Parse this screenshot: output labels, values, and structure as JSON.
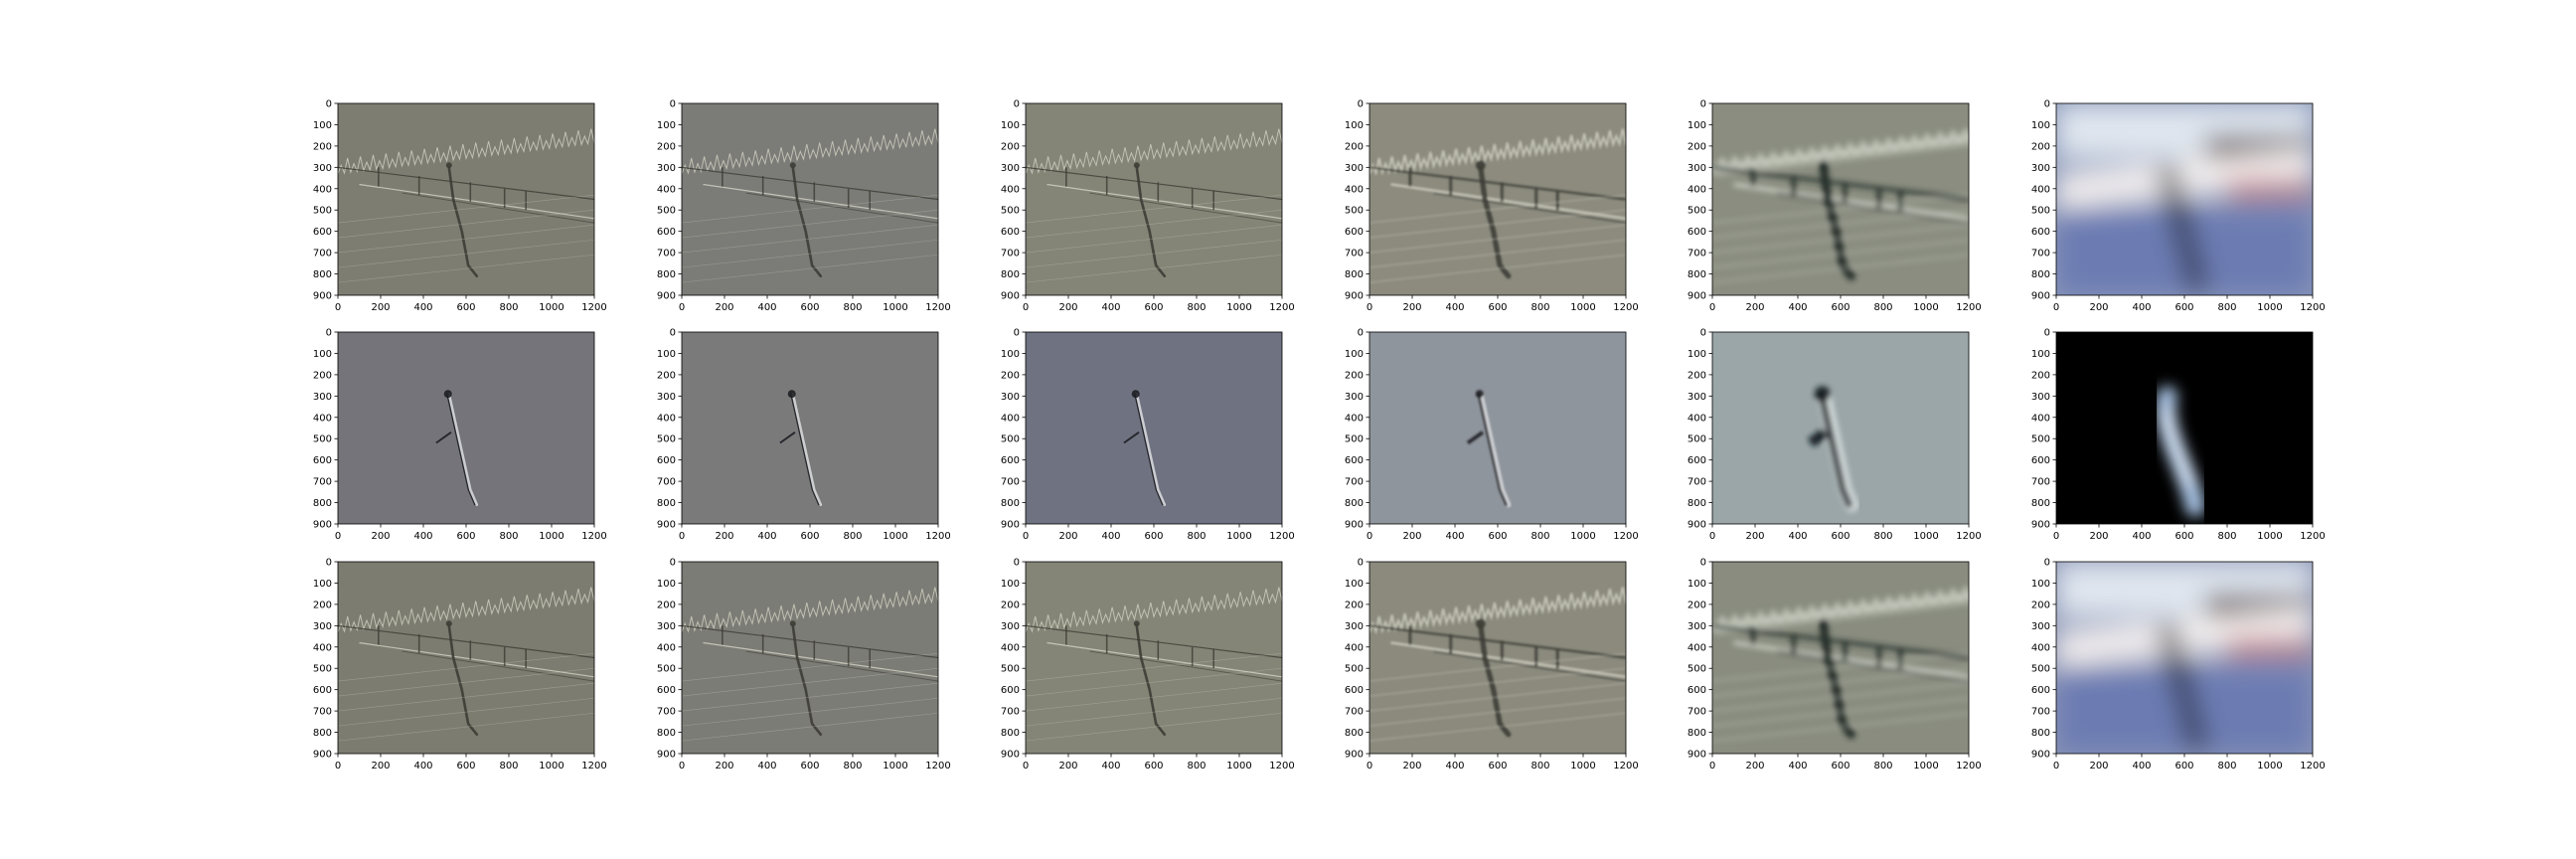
{
  "chart_data": {
    "type": "image-grid",
    "rows": 3,
    "cols": 6,
    "xlim": [
      0,
      1200
    ],
    "ylim": [
      900,
      0
    ],
    "xticks": [
      0,
      200,
      400,
      600,
      800,
      1000,
      1200
    ],
    "yticks": [
      0,
      100,
      200,
      300,
      400,
      500,
      600,
      700,
      800,
      900
    ],
    "panels": [
      {
        "row": 0,
        "col": 0,
        "base_color": "#7e7d72",
        "style": "scene-laplacian-fine"
      },
      {
        "row": 0,
        "col": 1,
        "base_color": "#7b7b77",
        "style": "scene-laplacian"
      },
      {
        "row": 0,
        "col": 2,
        "base_color": "#848477",
        "style": "scene-laplacian"
      },
      {
        "row": 0,
        "col": 3,
        "base_color": "#8c8b7e",
        "style": "scene-laplacian-coarse"
      },
      {
        "row": 0,
        "col": 4,
        "base_color": "#8a8d80",
        "style": "scene-blurred-band"
      },
      {
        "row": 0,
        "col": 5,
        "base_color": "#8a97b8",
        "style": "scene-lowpass"
      },
      {
        "row": 1,
        "col": 0,
        "base_color": "#75747a",
        "style": "person-edges"
      },
      {
        "row": 1,
        "col": 1,
        "base_color": "#7a7a7a",
        "style": "person-edges"
      },
      {
        "row": 1,
        "col": 2,
        "base_color": "#6f7280",
        "style": "person-edges"
      },
      {
        "row": 1,
        "col": 3,
        "base_color": "#8f959c",
        "style": "person-edges-coarse"
      },
      {
        "row": 1,
        "col": 4,
        "base_color": "#9aa6a8",
        "style": "person-blurred"
      },
      {
        "row": 1,
        "col": 5,
        "base_color": "#000000",
        "style": "person-lowpass"
      },
      {
        "row": 2,
        "col": 0,
        "base_color": "#7d7c70",
        "style": "scene-laplacian-fine"
      },
      {
        "row": 2,
        "col": 1,
        "base_color": "#7c7c76",
        "style": "scene-laplacian"
      },
      {
        "row": 2,
        "col": 2,
        "base_color": "#858577",
        "style": "scene-laplacian"
      },
      {
        "row": 2,
        "col": 3,
        "base_color": "#8b8a7d",
        "style": "scene-laplacian-coarse"
      },
      {
        "row": 2,
        "col": 4,
        "base_color": "#898c7f",
        "style": "scene-blurred-band"
      },
      {
        "row": 2,
        "col": 5,
        "base_color": "#8c96b6",
        "style": "scene-lowpass"
      }
    ]
  }
}
